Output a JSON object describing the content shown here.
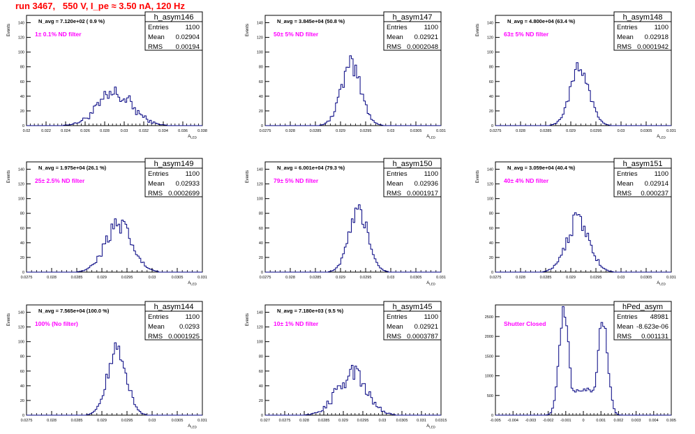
{
  "title": "run 3467,   550 V, I_pe ≈ 3.50 nA, 120 Hz",
  "colors": {
    "title": "#ff0000",
    "annotation": "#ff00ff",
    "hist": "#000080"
  },
  "chart_data": [
    {
      "type": "bar",
      "name": "h_asym146",
      "navg": "N_avg = 7.120e+02 ( 0.9 %)",
      "filter": "1± 0.1% ND filter",
      "stats": {
        "entries": "1100",
        "mean": "0.02904",
        "rms": "0.00194"
      },
      "xlim": [
        0.02,
        0.038
      ],
      "ylim": [
        0,
        150
      ],
      "xlabel": "A_LED",
      "ylabel": "Events",
      "xticks": [
        "0.02",
        "0.022",
        "0.024",
        "0.026",
        "0.028",
        "0.03",
        "0.032",
        "0.034",
        "0.036",
        "0.038"
      ],
      "yticks": [
        "0",
        "20",
        "40",
        "60",
        "80",
        "100",
        "120",
        "140"
      ],
      "mu": 0.0291,
      "sigma": 0.0018,
      "peak": 42,
      "noise": 0.35
    },
    {
      "type": "bar",
      "name": "h_asym147",
      "navg": "N_avg = 3.845e+04 (50.8 %)",
      "filter": "50± 5% ND filter",
      "stats": {
        "entries": "1100",
        "mean": "0.02921",
        "rms": "0.0002048"
      },
      "xlim": [
        0.0275,
        0.031
      ],
      "ylim": [
        0,
        150
      ],
      "xlabel": "A_LED",
      "ylabel": "Events",
      "xticks": [
        "0.0275",
        "0.028",
        "0.0285",
        "0.029",
        "0.0295",
        "0.03",
        "0.0305",
        "0.031"
      ],
      "yticks": [
        "0",
        "20",
        "40",
        "60",
        "80",
        "100",
        "120",
        "140"
      ],
      "mu": 0.02921,
      "sigma": 0.0002,
      "peak": 80,
      "noise": 0.2
    },
    {
      "type": "bar",
      "name": "h_asym148",
      "navg": "N_avg = 4.800e+04 (63.4 %)",
      "filter": "63± 5% ND filter",
      "stats": {
        "entries": "1100",
        "mean": "0.02918",
        "rms": "0.0001942"
      },
      "xlim": [
        0.0275,
        0.031
      ],
      "ylim": [
        0,
        150
      ],
      "xlabel": "A_LED",
      "ylabel": "Events",
      "xticks": [
        "0.0275",
        "0.028",
        "0.0285",
        "0.029",
        "0.0295",
        "0.03",
        "0.0305",
        "0.031"
      ],
      "yticks": [
        "0",
        "20",
        "40",
        "60",
        "80",
        "100",
        "120",
        "140"
      ],
      "mu": 0.02918,
      "sigma": 0.00019,
      "peak": 78,
      "noise": 0.15
    },
    {
      "type": "bar",
      "name": "h_asym149",
      "navg": "N_avg = 1.975e+04 (26.1 %)",
      "filter": "25± 2.5% ND filter",
      "stats": {
        "entries": "1100",
        "mean": "0.02933",
        "rms": "0.0002699"
      },
      "xlim": [
        0.0275,
        0.031
      ],
      "ylim": [
        0,
        150
      ],
      "xlabel": "A_LED",
      "ylabel": "Events",
      "xticks": [
        "0.0275",
        "0.028",
        "0.0285",
        "0.029",
        "0.0295",
        "0.03",
        "0.0305",
        "0.031"
      ],
      "yticks": [
        "0",
        "20",
        "40",
        "60",
        "80",
        "100",
        "120",
        "140"
      ],
      "mu": 0.02933,
      "sigma": 0.00027,
      "peak": 62,
      "noise": 0.25
    },
    {
      "type": "bar",
      "name": "h_asym150",
      "navg": "N_avg = 6.001e+04 (79.3 %)",
      "filter": "79± 5% ND filter",
      "stats": {
        "entries": "1100",
        "mean": "0.02936",
        "rms": "0.0001917"
      },
      "xlim": [
        0.0275,
        0.031
      ],
      "ylim": [
        0,
        150
      ],
      "xlabel": "A_LED",
      "ylabel": "Events",
      "xticks": [
        "0.0275",
        "0.028",
        "0.0285",
        "0.029",
        "0.0295",
        "0.03",
        "0.0305",
        "0.031"
      ],
      "yticks": [
        "0",
        "20",
        "40",
        "60",
        "80",
        "100",
        "120",
        "140"
      ],
      "mu": 0.02936,
      "sigma": 0.00019,
      "peak": 82,
      "noise": 0.15
    },
    {
      "type": "bar",
      "name": "h_asym151",
      "navg": "N_avg = 3.059e+04 (40.4 %)",
      "filter": "40± 4% ND filter",
      "stats": {
        "entries": "1100",
        "mean": "0.02914",
        "rms": "0.000237"
      },
      "xlim": [
        0.0275,
        0.031
      ],
      "ylim": [
        0,
        150
      ],
      "xlabel": "A_LED",
      "ylabel": "Events",
      "xticks": [
        "0.0275",
        "0.028",
        "0.0285",
        "0.029",
        "0.0295",
        "0.03",
        "0.0305",
        "0.031"
      ],
      "yticks": [
        "0",
        "20",
        "40",
        "60",
        "80",
        "100",
        "120",
        "140"
      ],
      "mu": 0.02914,
      "sigma": 0.00023,
      "peak": 70,
      "noise": 0.2
    },
    {
      "type": "bar",
      "name": "h_asym144",
      "navg": "N_avg = 7.565e+04 (100.0 %)",
      "filter": "100% (No filter)",
      "stats": {
        "entries": "1100",
        "mean": "0.0293",
        "rms": "0.0001925"
      },
      "xlim": [
        0.0275,
        0.031
      ],
      "ylim": [
        0,
        150
      ],
      "xlabel": "A_LED",
      "ylabel": "Events",
      "xticks": [
        "0.0275",
        "0.028",
        "0.0285",
        "0.029",
        "0.0295",
        "0.03",
        "0.0305",
        "0.031"
      ],
      "yticks": [
        "0",
        "20",
        "40",
        "60",
        "80",
        "100",
        "120",
        "140"
      ],
      "mu": 0.0293,
      "sigma": 0.00019,
      "peak": 88,
      "noise": 0.15
    },
    {
      "type": "bar",
      "name": "h_asym145",
      "navg": "N_avg = 7.180e+03 ( 9.5 %)",
      "filter": "10± 1% ND filter",
      "stats": {
        "entries": "1100",
        "mean": "0.02921",
        "rms": "0.0003787"
      },
      "xlim": [
        0.027,
        0.0315
      ],
      "ylim": [
        0,
        150
      ],
      "xlabel": "A_LED",
      "ylabel": "Events",
      "xticks": [
        "0.027",
        "0.0275",
        "0.028",
        "0.0285",
        "0.029",
        "0.0295",
        "0.03",
        "0.0305",
        "0.031",
        "0.0315"
      ],
      "yticks": [
        "0",
        "20",
        "40",
        "60",
        "80",
        "100",
        "120",
        "140"
      ],
      "mu": 0.02921,
      "sigma": 0.00038,
      "peak": 56,
      "noise": 0.3
    },
    {
      "type": "bar",
      "name": "hPed_asym",
      "navg": "",
      "filter": "Shutter Closed",
      "stats": {
        "entries": "48981",
        "mean": "-8.623e-06",
        "rms": "0.001131"
      },
      "xlim": [
        -0.005,
        0.005
      ],
      "ylim": [
        0,
        2800
      ],
      "xlabel": "",
      "ylabel": "",
      "xticks": [
        "-0.005",
        "-0.004",
        "-0.003",
        "-0.002",
        "-0.001",
        "0",
        "0.001",
        "0.002",
        "0.003",
        "0.004",
        "0.005"
      ],
      "yticks": [
        "0",
        "500",
        "1000",
        "1500",
        "2000",
        "2500"
      ],
      "peaks": [
        {
          "mu": -0.0011,
          "sigma": 0.00028,
          "amp": 2600
        },
        {
          "mu": 0.0011,
          "sigma": 0.00028,
          "amp": 2450
        }
      ],
      "floor": 650,
      "noise": 0.08
    }
  ]
}
